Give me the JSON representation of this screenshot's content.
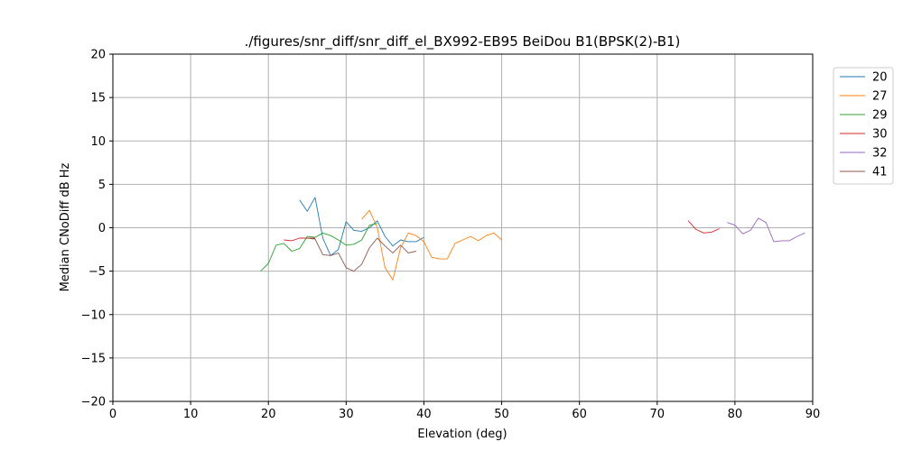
{
  "chart_data": {
    "type": "line",
    "title": "./figures/snr_diff/snr_diff_el_BX992-EB95 BeiDou  B1(BPSK(2)-B1)",
    "xlabel": "Elevation (deg)",
    "ylabel": "Median CNoDiff dB Hz",
    "xlim": [
      0,
      90
    ],
    "ylim": [
      -20,
      20
    ],
    "xticks": [
      0,
      10,
      20,
      30,
      40,
      50,
      60,
      70,
      80,
      90
    ],
    "yticks": [
      -20,
      -15,
      -10,
      -5,
      0,
      5,
      10,
      15,
      20
    ],
    "xtick_labels": [
      "0",
      "10",
      "20",
      "30",
      "40",
      "50",
      "60",
      "70",
      "80",
      "90"
    ],
    "ytick_labels": [
      "−20",
      "−15",
      "−10",
      "−5",
      "0",
      "5",
      "10",
      "15",
      "20"
    ],
    "grid": true,
    "legend_position": "outside-top-right",
    "series": [
      {
        "name": "20",
        "color": "#1f77b4",
        "x": [
          24,
          25,
          26,
          27,
          28,
          29,
          30,
          31,
          32,
          33,
          34,
          35,
          36,
          37,
          38,
          39,
          40
        ],
        "y": [
          3.2,
          1.9,
          3.5,
          -1.2,
          -3.2,
          -2.5,
          0.7,
          -0.3,
          -0.4,
          0.0,
          0.8,
          -1.0,
          -2.1,
          -1.4,
          -1.6,
          -1.6,
          -1.1
        ]
      },
      {
        "name": "27",
        "color": "#ff7f0e",
        "x": [
          32,
          33,
          34,
          35,
          36,
          37,
          38,
          39,
          40,
          41,
          42,
          43,
          44,
          45,
          46,
          47,
          48,
          49,
          50
        ],
        "y": [
          1.0,
          2.0,
          0.0,
          -4.6,
          -6.0,
          -2.3,
          -0.6,
          -0.9,
          -1.6,
          -3.4,
          -3.6,
          -3.6,
          -1.8,
          -1.4,
          -1.0,
          -1.5,
          -0.9,
          -0.6,
          -1.4
        ]
      },
      {
        "name": "29",
        "color": "#2ca02c",
        "x": [
          19,
          20,
          21,
          22,
          23,
          24,
          25,
          26,
          27,
          28,
          29,
          30,
          31,
          32,
          33,
          34
        ],
        "y": [
          -5.0,
          -4.1,
          -2.0,
          -1.8,
          -2.7,
          -2.4,
          -1.0,
          -1.1,
          -0.6,
          -0.9,
          -1.4,
          -2.0,
          -1.9,
          -1.4,
          0.3,
          0.5
        ]
      },
      {
        "name": "30",
        "color": "#d62728",
        "x": [
          22,
          23,
          24,
          25,
          26,
          74,
          75,
          76,
          77,
          78
        ],
        "y": [
          -1.4,
          -1.5,
          -1.2,
          -1.2,
          -1.2,
          0.8,
          -0.2,
          -0.6,
          -0.5,
          -0.1
        ],
        "gap_after_x": 26
      },
      {
        "name": "32",
        "color": "#9467bd",
        "x": [
          79,
          80,
          81,
          82,
          83,
          84,
          85,
          86,
          87,
          88,
          89
        ],
        "y": [
          0.6,
          0.3,
          -0.7,
          -0.3,
          1.1,
          0.6,
          -1.6,
          -1.5,
          -1.5,
          -1.0,
          -0.6
        ]
      },
      {
        "name": "41",
        "color": "#8c564b",
        "x": [
          25,
          26,
          27,
          28,
          29,
          30,
          31,
          32,
          33,
          34,
          35,
          36,
          37,
          38,
          39
        ],
        "y": [
          -1.2,
          -1.3,
          -3.1,
          -3.2,
          -2.9,
          -4.6,
          -5.0,
          -4.2,
          -2.3,
          -1.2,
          -2.1,
          -2.9,
          -2.0,
          -2.9,
          -2.7
        ]
      }
    ]
  }
}
